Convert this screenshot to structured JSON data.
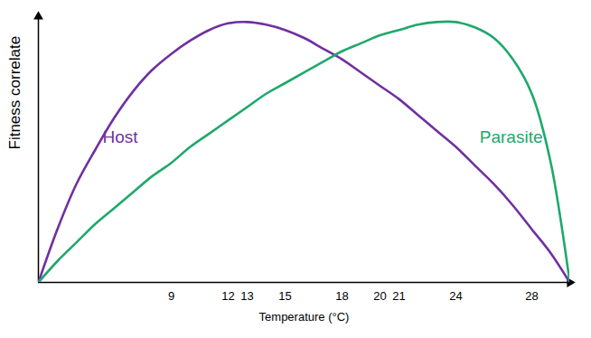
{
  "chart_data": {
    "type": "line",
    "x_label": "Temperature (°C)",
    "y_label": "Fitness correlate",
    "x": [
      2,
      3,
      4,
      5,
      6,
      7,
      8,
      9,
      10,
      11,
      12,
      13,
      14,
      15,
      16,
      17,
      18,
      19,
      20,
      21,
      22,
      23,
      24,
      25,
      26,
      27,
      28,
      29,
      30
    ],
    "series": [
      {
        "name": "Host",
        "color": "#7030a0",
        "values": [
          0,
          0.2,
          0.37,
          0.5,
          0.62,
          0.72,
          0.8,
          0.86,
          0.91,
          0.95,
          0.975,
          0.98,
          0.97,
          0.95,
          0.92,
          0.88,
          0.84,
          0.79,
          0.74,
          0.69,
          0.63,
          0.57,
          0.51,
          0.44,
          0.37,
          0.29,
          0.2,
          0.11,
          0
        ]
      },
      {
        "name": "Parasite",
        "color": "#1fa86b",
        "values": [
          0,
          0.08,
          0.15,
          0.22,
          0.28,
          0.34,
          0.4,
          0.45,
          0.51,
          0.56,
          0.61,
          0.66,
          0.71,
          0.75,
          0.79,
          0.83,
          0.87,
          0.9,
          0.93,
          0.95,
          0.97,
          0.98,
          0.98,
          0.96,
          0.92,
          0.84,
          0.71,
          0.45,
          0
        ]
      }
    ],
    "xlim": [
      2,
      30
    ],
    "ylim": [
      0,
      1
    ],
    "xticks": [
      9,
      12,
      13,
      15,
      18,
      20,
      21,
      24,
      28
    ],
    "yticks": [],
    "tick_labels": "x",
    "grid": false
  }
}
